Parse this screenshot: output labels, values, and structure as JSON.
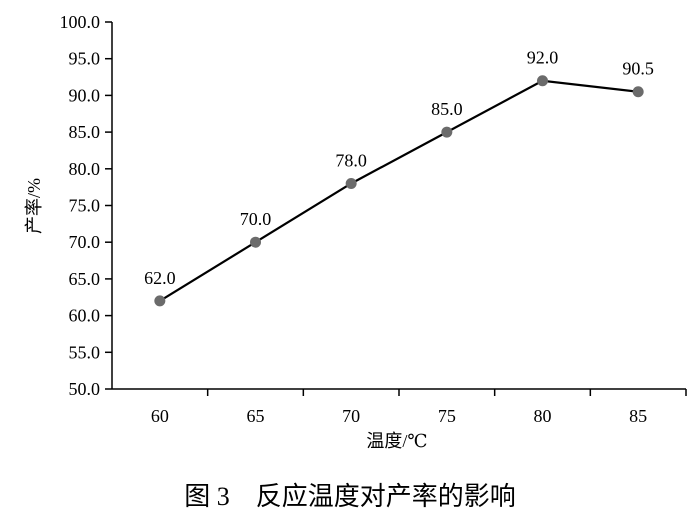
{
  "chart_data": {
    "type": "line",
    "x": [
      60,
      65,
      70,
      75,
      80,
      85
    ],
    "series": [
      {
        "values": [
          62.0,
          70.0,
          78.0,
          85.0,
          92.0,
          90.5
        ],
        "data_labels": [
          "62.0",
          "70.0",
          "78.0",
          "85.0",
          "92.0",
          "90.5"
        ]
      }
    ],
    "x_tick_labels": [
      "60",
      "65",
      "70",
      "75",
      "80",
      "85"
    ],
    "y_tick_labels": [
      "50.0",
      "55.0",
      "60.0",
      "65.0",
      "70.0",
      "75.0",
      "80.0",
      "85.0",
      "90.0",
      "95.0",
      "100.0"
    ],
    "y_ticks": [
      50,
      55,
      60,
      65,
      70,
      75,
      80,
      85,
      90,
      95,
      100
    ],
    "ylim": [
      50,
      100
    ],
    "xlabel": "温度/℃",
    "ylabel": "产率/%",
    "grid": false,
    "line_color": "#000000",
    "marker_color": "#6b6b6b"
  },
  "caption": "图 3　反应温度对产率的影响"
}
